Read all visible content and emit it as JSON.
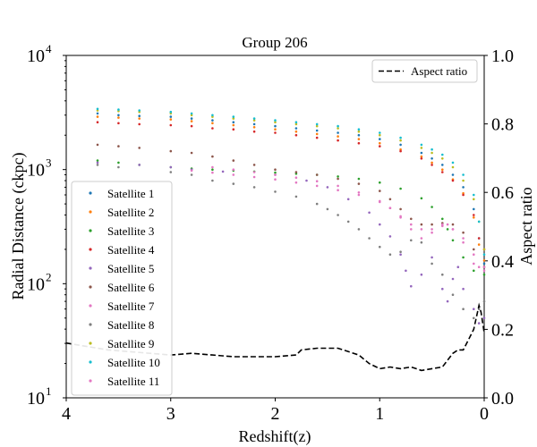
{
  "chart_data": {
    "type": "scatter",
    "title": "Group 206",
    "xlabel": "Redshift(z)",
    "ylabel": "Radial Distance (ckpc)",
    "y2label": "Aspect ratio",
    "x_range": [
      4,
      0
    ],
    "x_ticks": [
      4,
      3,
      2,
      1,
      0
    ],
    "y_scale": "log",
    "y_range": [
      10,
      10000
    ],
    "y_ticks": [
      10,
      100,
      1000,
      10000
    ],
    "y_ticks_exp": [
      "1",
      "2",
      "3",
      "4"
    ],
    "y2_range": [
      0.0,
      1.0
    ],
    "y2_ticks": [
      "0.0",
      "0.2",
      "0.4",
      "0.6",
      "0.8",
      "1.0"
    ],
    "legend_location": "upper-left / lower-left",
    "series": [
      {
        "name": "Satellite 1",
        "color": "#1f77b4",
        "points": [
          [
            3.7,
            3100
          ],
          [
            3.5,
            3000
          ],
          [
            3.3,
            2950
          ],
          [
            3.0,
            2900
          ],
          [
            2.8,
            2800
          ],
          [
            2.6,
            2700
          ],
          [
            2.4,
            2600
          ],
          [
            2.2,
            2500
          ],
          [
            2.0,
            2400
          ],
          [
            1.8,
            2300
          ],
          [
            1.6,
            2200
          ],
          [
            1.4,
            2100
          ],
          [
            1.2,
            2000
          ],
          [
            1.0,
            1850
          ],
          [
            0.8,
            1650
          ],
          [
            0.6,
            1400
          ],
          [
            0.5,
            1250
          ],
          [
            0.4,
            1100
          ],
          [
            0.3,
            900
          ],
          [
            0.2,
            700
          ],
          [
            0.1,
            450
          ],
          [
            0.05,
            250
          ],
          [
            0.0,
            150
          ]
        ]
      },
      {
        "name": "Satellite 2",
        "color": "#ff7f0e",
        "points": [
          [
            3.7,
            2900
          ],
          [
            3.5,
            2850
          ],
          [
            3.3,
            2800
          ],
          [
            3.0,
            2750
          ],
          [
            2.8,
            2650
          ],
          [
            2.6,
            2550
          ],
          [
            2.4,
            2450
          ],
          [
            2.2,
            2350
          ],
          [
            2.0,
            2250
          ],
          [
            1.8,
            2150
          ],
          [
            1.6,
            2050
          ],
          [
            1.4,
            1950
          ],
          [
            1.2,
            1850
          ],
          [
            1.0,
            1700
          ],
          [
            0.8,
            1500
          ],
          [
            0.6,
            1300
          ],
          [
            0.5,
            1150
          ],
          [
            0.4,
            1000
          ],
          [
            0.3,
            820
          ],
          [
            0.2,
            620
          ],
          [
            0.1,
            380
          ],
          [
            0.05,
            220
          ],
          [
            0.0,
            160
          ]
        ]
      },
      {
        "name": "Satellite 3",
        "color": "#2ca02c",
        "points": [
          [
            3.7,
            1200
          ],
          [
            3.5,
            1150
          ],
          [
            3.3,
            1100
          ],
          [
            3.0,
            1050
          ],
          [
            2.8,
            1020
          ],
          [
            2.6,
            1000
          ],
          [
            2.4,
            980
          ],
          [
            2.2,
            960
          ],
          [
            2.0,
            940
          ],
          [
            1.8,
            920
          ],
          [
            1.6,
            900
          ],
          [
            1.4,
            870
          ],
          [
            1.2,
            830
          ],
          [
            1.0,
            770
          ],
          [
            0.8,
            680
          ],
          [
            0.6,
            560
          ],
          [
            0.5,
            470
          ],
          [
            0.4,
            370
          ],
          [
            0.35,
            300
          ],
          [
            0.3,
            240
          ],
          [
            0.2,
            170
          ],
          [
            0.1,
            130
          ],
          [
            0.0,
            120
          ]
        ]
      },
      {
        "name": "Satellite 4",
        "color": "#d62728",
        "points": [
          [
            3.7,
            2600
          ],
          [
            3.5,
            2550
          ],
          [
            3.3,
            2500
          ],
          [
            3.0,
            2450
          ],
          [
            2.8,
            2400
          ],
          [
            2.6,
            2300
          ],
          [
            2.4,
            2250
          ],
          [
            2.2,
            2150
          ],
          [
            2.0,
            2100
          ],
          [
            1.8,
            2000
          ],
          [
            1.6,
            1900
          ],
          [
            1.4,
            1800
          ],
          [
            1.2,
            1700
          ],
          [
            1.0,
            1600
          ],
          [
            0.8,
            1450
          ],
          [
            0.6,
            1250
          ],
          [
            0.5,
            1100
          ],
          [
            0.4,
            950
          ],
          [
            0.3,
            800
          ],
          [
            0.2,
            600
          ],
          [
            0.1,
            400
          ],
          [
            0.05,
            250
          ],
          [
            0.0,
            200
          ]
        ]
      },
      {
        "name": "Satellite 5",
        "color": "#9467bd",
        "points": [
          [
            3.7,
            1150
          ],
          [
            3.3,
            1100
          ],
          [
            3.0,
            1050
          ],
          [
            2.8,
            1000
          ],
          [
            2.5,
            960
          ],
          [
            2.0,
            900
          ],
          [
            1.7,
            800
          ],
          [
            1.5,
            700
          ],
          [
            1.3,
            550
          ],
          [
            1.1,
            420
          ],
          [
            1.0,
            330
          ],
          [
            0.9,
            260
          ],
          [
            0.8,
            180
          ],
          [
            0.75,
            130
          ],
          [
            0.7,
            95
          ],
          [
            0.6,
            120
          ],
          [
            0.5,
            170
          ],
          [
            0.4,
            90
          ],
          [
            0.35,
            70
          ],
          [
            0.3,
            110
          ],
          [
            0.25,
            140
          ],
          [
            0.2,
            90
          ],
          [
            0.1,
            60
          ],
          [
            0.05,
            45
          ],
          [
            0.0,
            50
          ]
        ]
      },
      {
        "name": "Satellite 6",
        "color": "#8c564b",
        "points": [
          [
            3.7,
            1650
          ],
          [
            3.5,
            1600
          ],
          [
            3.3,
            1550
          ],
          [
            3.0,
            1450
          ],
          [
            2.8,
            1400
          ],
          [
            2.6,
            1300
          ],
          [
            2.4,
            1200
          ],
          [
            2.2,
            1100
          ],
          [
            2.0,
            1000
          ],
          [
            1.8,
            950
          ],
          [
            1.6,
            900
          ],
          [
            1.4,
            830
          ],
          [
            1.2,
            750
          ],
          [
            1.0,
            650
          ],
          [
            0.9,
            550
          ],
          [
            0.8,
            450
          ],
          [
            0.7,
            370
          ],
          [
            0.6,
            330
          ],
          [
            0.5,
            330
          ],
          [
            0.4,
            340
          ],
          [
            0.3,
            330
          ],
          [
            0.2,
            280
          ],
          [
            0.1,
            200
          ],
          [
            0.0,
            140
          ]
        ]
      },
      {
        "name": "Satellite 7",
        "color": "#e377c2",
        "points": [
          [
            2.6,
            1050
          ],
          [
            2.4,
            1000
          ],
          [
            2.2,
            950
          ],
          [
            2.0,
            900
          ],
          [
            1.8,
            850
          ],
          [
            1.6,
            790
          ],
          [
            1.4,
            720
          ],
          [
            1.2,
            630
          ],
          [
            1.0,
            530
          ],
          [
            0.9,
            460
          ],
          [
            0.8,
            380
          ],
          [
            0.7,
            300
          ],
          [
            0.6,
            250
          ],
          [
            0.5,
            280
          ],
          [
            0.4,
            330
          ],
          [
            0.35,
            330
          ],
          [
            0.3,
            300
          ],
          [
            0.2,
            230
          ],
          [
            0.1,
            150
          ],
          [
            0.05,
            140
          ],
          [
            0.0,
            130
          ]
        ]
      },
      {
        "name": "Satellite 8",
        "color": "#7f7f7f",
        "points": [
          [
            3.7,
            1100
          ],
          [
            3.5,
            1050
          ],
          [
            3.0,
            950
          ],
          [
            2.8,
            900
          ],
          [
            2.6,
            800
          ],
          [
            2.4,
            750
          ],
          [
            2.2,
            700
          ],
          [
            2.0,
            640
          ],
          [
            1.8,
            580
          ],
          [
            1.6,
            500
          ],
          [
            1.5,
            450
          ],
          [
            1.4,
            400
          ],
          [
            1.3,
            350
          ],
          [
            1.2,
            300
          ],
          [
            1.1,
            250
          ],
          [
            1.0,
            210
          ],
          [
            0.9,
            180
          ],
          [
            0.8,
            190
          ],
          [
            0.7,
            240
          ],
          [
            0.6,
            230
          ],
          [
            0.5,
            150
          ],
          [
            0.4,
            120
          ],
          [
            0.3,
            80
          ],
          [
            0.2,
            60
          ],
          [
            0.1,
            50
          ],
          [
            0.05,
            60
          ],
          [
            0.0,
            70
          ]
        ]
      },
      {
        "name": "Satellite 9",
        "color": "#bcbd22",
        "points": [
          [
            3.7,
            3300
          ],
          [
            3.5,
            3250
          ],
          [
            3.3,
            3200
          ],
          [
            3.0,
            3100
          ],
          [
            2.8,
            3000
          ],
          [
            2.6,
            2900
          ],
          [
            2.4,
            2800
          ],
          [
            2.2,
            2700
          ],
          [
            2.0,
            2600
          ],
          [
            1.8,
            2500
          ],
          [
            1.6,
            2400
          ],
          [
            1.4,
            2300
          ],
          [
            1.2,
            2150
          ],
          [
            1.0,
            2000
          ],
          [
            0.8,
            1800
          ],
          [
            0.6,
            1550
          ],
          [
            0.5,
            1400
          ],
          [
            0.4,
            1250
          ],
          [
            0.3,
            1050
          ],
          [
            0.2,
            800
          ],
          [
            0.1,
            550
          ],
          [
            0.05,
            350
          ],
          [
            0.0,
            200
          ]
        ]
      },
      {
        "name": "Satellite 10",
        "color": "#17becf",
        "points": [
          [
            3.7,
            3400
          ],
          [
            3.5,
            3350
          ],
          [
            3.3,
            3300
          ],
          [
            3.0,
            3200
          ],
          [
            2.8,
            3100
          ],
          [
            2.6,
            3000
          ],
          [
            2.4,
            2900
          ],
          [
            2.2,
            2800
          ],
          [
            2.0,
            2700
          ],
          [
            1.8,
            2600
          ],
          [
            1.6,
            2500
          ],
          [
            1.4,
            2400
          ],
          [
            1.2,
            2250
          ],
          [
            1.0,
            2100
          ],
          [
            0.8,
            1900
          ],
          [
            0.6,
            1650
          ],
          [
            0.5,
            1500
          ],
          [
            0.4,
            1350
          ],
          [
            0.3,
            1150
          ],
          [
            0.2,
            900
          ],
          [
            0.1,
            600
          ],
          [
            0.05,
            350
          ],
          [
            0.0,
            180
          ]
        ]
      },
      {
        "name": "Satellite 11",
        "color": "#e377c2",
        "points": [
          [
            2.8,
            980
          ],
          [
            2.6,
            940
          ],
          [
            2.4,
            900
          ],
          [
            2.2,
            860
          ],
          [
            2.0,
            820
          ],
          [
            1.8,
            770
          ],
          [
            1.6,
            720
          ],
          [
            1.4,
            660
          ],
          [
            1.2,
            600
          ],
          [
            1.0,
            520
          ],
          [
            0.9,
            460
          ],
          [
            0.8,
            390
          ],
          [
            0.7,
            330
          ],
          [
            0.6,
            300
          ],
          [
            0.5,
            300
          ],
          [
            0.4,
            320
          ],
          [
            0.3,
            300
          ],
          [
            0.2,
            250
          ],
          [
            0.1,
            180
          ],
          [
            0.0,
            140
          ]
        ]
      }
    ],
    "aspect_ratio": {
      "name": "Aspect ratio",
      "color": "#000000",
      "style": "dashed",
      "points": [
        [
          4.0,
          0.16
        ],
        [
          3.8,
          0.15
        ],
        [
          3.6,
          0.14
        ],
        [
          3.4,
          0.135
        ],
        [
          3.2,
          0.13
        ],
        [
          3.0,
          0.125
        ],
        [
          2.8,
          0.13
        ],
        [
          2.6,
          0.125
        ],
        [
          2.4,
          0.12
        ],
        [
          2.2,
          0.12
        ],
        [
          2.0,
          0.12
        ],
        [
          1.8,
          0.125
        ],
        [
          1.75,
          0.14
        ],
        [
          1.6,
          0.145
        ],
        [
          1.4,
          0.145
        ],
        [
          1.3,
          0.135
        ],
        [
          1.2,
          0.125
        ],
        [
          1.1,
          0.1
        ],
        [
          1.0,
          0.085
        ],
        [
          0.9,
          0.09
        ],
        [
          0.8,
          0.085
        ],
        [
          0.7,
          0.09
        ],
        [
          0.65,
          0.085
        ],
        [
          0.6,
          0.08
        ],
        [
          0.5,
          0.085
        ],
        [
          0.4,
          0.09
        ],
        [
          0.3,
          0.13
        ],
        [
          0.25,
          0.14
        ],
        [
          0.2,
          0.14
        ],
        [
          0.15,
          0.17
        ],
        [
          0.1,
          0.2
        ],
        [
          0.05,
          0.27
        ],
        [
          0.03,
          0.25
        ],
        [
          0.0,
          0.19
        ]
      ]
    }
  }
}
